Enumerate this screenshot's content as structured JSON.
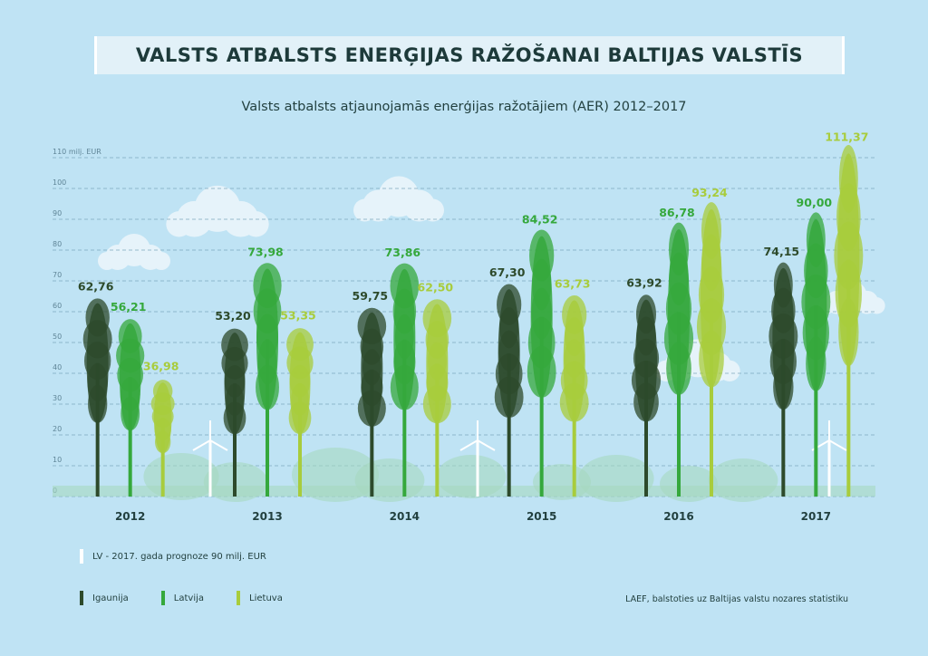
{
  "title": "VALSTS ATBALSTS ENERĢIJAS RAŽOŠANAI BALTIJAS VALSTĪS",
  "subtitle": "Valsts atbalsts atjaunojamās enerģijas ražotājiem (AER) 2012–2017",
  "note": "LV - 2017. gada prognoze 90 milj. EUR",
  "source": "LAEF, balstoties uz Baltijas valstu nozares statistiku",
  "colors": {
    "background": "#bfe3f4",
    "igaunija": "#2d4a2b",
    "latvija": "#35a83c",
    "lietuva": "#a8cc3c",
    "note_mark": "#ffffff"
  },
  "legend": [
    {
      "label": "Igaunija",
      "color": "#2d4a2b"
    },
    {
      "label": "Latvija",
      "color": "#35a83c"
    },
    {
      "label": "Lietuva",
      "color": "#a8cc3c"
    }
  ],
  "chart_data": {
    "type": "bar",
    "mark_style": "tree-shaped bars",
    "title": "Valsts atbalsts atjaunojamās enerģijas ražotājiem (AER) 2012–2017",
    "ylabel": "110 milj. EUR",
    "yticks": [
      "0",
      "10",
      "20",
      "30",
      "40",
      "50",
      "60",
      "70",
      "80",
      "90",
      "100"
    ],
    "ylim": [
      0,
      110
    ],
    "grid": true,
    "categories": [
      "2012",
      "2013",
      "2014",
      "2015",
      "2016",
      "2017"
    ],
    "series": [
      {
        "name": "Igaunija",
        "color": "#2d4a2b",
        "values": [
          62.76,
          53.2,
          59.75,
          67.3,
          63.92,
          74.15
        ],
        "labels": [
          "62,76",
          "53,20",
          "59,75",
          "67,30",
          "63,92",
          "74,15"
        ]
      },
      {
        "name": "Latvija",
        "color": "#35a83c",
        "values": [
          56.21,
          73.98,
          73.86,
          84.52,
          86.78,
          90.0
        ],
        "labels": [
          "56,21",
          "73,98",
          "73,86",
          "84,52",
          "86,78",
          "90,00"
        ]
      },
      {
        "name": "Lietuva",
        "color": "#a8cc3c",
        "values": [
          36.98,
          53.35,
          62.5,
          63.73,
          93.24,
          111.37
        ],
        "labels": [
          "36,98",
          "53,35",
          "62,50",
          "63,73",
          "93,24",
          "111,37"
        ]
      }
    ]
  }
}
